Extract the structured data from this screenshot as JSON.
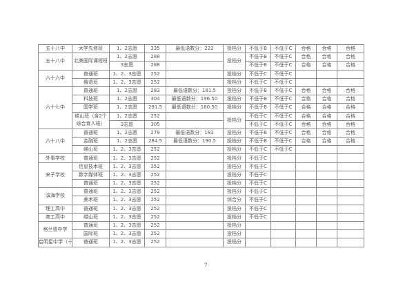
{
  "table": {
    "rows": [
      [
        {
          "t": "五十八中"
        },
        {
          "t": "大学先修班"
        },
        {
          "t": "1、2志愿"
        },
        {
          "t": "335"
        },
        {
          "t": "最低语数分：222"
        },
        {
          "t": "投档分"
        },
        {
          "t": "不低于B"
        },
        {
          "t": "不低于C"
        },
        {
          "t": "合格"
        },
        {
          "t": "合格"
        },
        {
          "t": "合格"
        }
      ],
      [
        {
          "t": "五十八中",
          "rs": 2
        },
        {
          "t": "北美国际课程班",
          "rs": 2
        },
        {
          "t": "1、2志愿"
        },
        {
          "t": "288"
        },
        {
          "t": ""
        },
        {
          "t": "投档分",
          "rs": 2
        },
        {
          "t": "不低于B"
        },
        {
          "t": "不低于C"
        },
        {
          "t": "合格"
        },
        {
          "t": "合格"
        },
        {
          "t": "合格"
        }
      ],
      [
        {
          "t": "3志愿"
        },
        {
          "t": "288"
        },
        {
          "t": ""
        },
        {
          "t": "不低于B"
        },
        {
          "t": "不低于C"
        },
        {
          "t": "合格"
        },
        {
          "t": "合格"
        },
        {
          "t": "合格"
        }
      ],
      [
        {
          "t": "六十六中",
          "rs": 2
        },
        {
          "t": "普通班"
        },
        {
          "t": "1、2、3志愿"
        },
        {
          "t": "252"
        },
        {
          "t": ""
        },
        {
          "t": "投档分"
        },
        {
          "t": "不低于C"
        },
        {
          "t": "不低于C"
        },
        {
          "t": ""
        },
        {
          "t": ""
        },
        {
          "t": ""
        }
      ],
      [
        {
          "t": "俄语班"
        },
        {
          "t": "1、2、3志愿"
        },
        {
          "t": "252"
        },
        {
          "t": ""
        },
        {
          "t": "投档分"
        },
        {
          "t": "不低于C"
        },
        {
          "t": "不低于C"
        },
        {
          "t": ""
        },
        {
          "t": ""
        },
        {
          "t": ""
        }
      ],
      [
        {
          "t": "六十七中",
          "rs": 5
        },
        {
          "t": "普通班"
        },
        {
          "t": "1、2志愿"
        },
        {
          "t": "283"
        },
        {
          "t": "最低语数分：181.5"
        },
        {
          "t": "投档分"
        },
        {
          "t": "不低于B"
        },
        {
          "t": "不低于C"
        },
        {
          "t": "合格"
        },
        {
          "t": "合格"
        },
        {
          "t": "合格"
        }
      ],
      [
        {
          "t": "科技班"
        },
        {
          "t": "1、2志愿"
        },
        {
          "t": "304"
        },
        {
          "t": "最低语数分：196.50"
        },
        {
          "t": "投档分"
        },
        {
          "t": "不低于B"
        },
        {
          "t": "不低于C"
        },
        {
          "t": "合格"
        },
        {
          "t": "合格"
        },
        {
          "t": "合格"
        }
      ],
      [
        {
          "t": "国学班"
        },
        {
          "t": "1、2志愿"
        },
        {
          "t": "291.5"
        },
        {
          "t": "最低语数分：180.50"
        },
        {
          "t": "投档分"
        },
        {
          "t": "不低于B"
        },
        {
          "t": "不低于C"
        },
        {
          "t": "合格"
        },
        {
          "t": "合格"
        },
        {
          "t": "合格"
        }
      ],
      [
        {
          "t": "崂山班（含2个综合育人班）",
          "rs": 2,
          "wrap": true
        },
        {
          "t": "1、2志愿"
        },
        {
          "t": "252"
        },
        {
          "t": ""
        },
        {
          "t": "投档分",
          "rs": 2
        },
        {
          "t": "不低于C"
        },
        {
          "t": "不低于C"
        },
        {
          "t": "合格"
        },
        {
          "t": "合格"
        },
        {
          "t": "合格"
        }
      ],
      [
        {
          "t": "3志愿"
        },
        {
          "t": "305"
        },
        {
          "t": ""
        },
        {
          "t": "不低于C"
        },
        {
          "t": "不低于C"
        },
        {
          "t": "合格"
        },
        {
          "t": "合格"
        },
        {
          "t": "合格"
        }
      ],
      [
        {
          "t": "六十八中",
          "rs": 3
        },
        {
          "t": "普通班"
        },
        {
          "t": "1、2志愿"
        },
        {
          "t": "279"
        },
        {
          "t": "最低语数分：182"
        },
        {
          "t": "投档分"
        },
        {
          "t": "不低于B"
        },
        {
          "t": "不低于C"
        },
        {
          "t": "合格"
        },
        {
          "t": "合格"
        },
        {
          "t": "合格"
        }
      ],
      [
        {
          "t": "金融班"
        },
        {
          "t": "1、2志愿"
        },
        {
          "t": "284.5"
        },
        {
          "t": "最低语数分：190.5"
        },
        {
          "t": "投档分"
        },
        {
          "t": "不低于B"
        },
        {
          "t": "不低于C"
        },
        {
          "t": "合格"
        },
        {
          "t": "合格"
        },
        {
          "t": "合格"
        }
      ],
      [
        {
          "t": "崂山班"
        },
        {
          "t": "1、2、3志愿"
        },
        {
          "t": "252"
        },
        {
          "t": ""
        },
        {
          "t": "投档分"
        },
        {
          "t": "不低于C"
        },
        {
          "t": "不低于C"
        },
        {
          "t": ""
        },
        {
          "t": ""
        },
        {
          "t": ""
        }
      ],
      [
        {
          "t": "外事学校"
        },
        {
          "t": "普通班"
        },
        {
          "t": "1、2、3志愿"
        },
        {
          "t": "252"
        },
        {
          "t": ""
        },
        {
          "t": "投档分"
        },
        {
          "t": "不低于C"
        },
        {
          "t": ""
        },
        {
          "t": ""
        },
        {
          "t": ""
        },
        {
          "t": ""
        }
      ],
      [
        {
          "t": "来子学校",
          "rs": 3
        },
        {
          "t": "信息技术班"
        },
        {
          "t": "1、2、3志愿"
        },
        {
          "t": "252"
        },
        {
          "t": ""
        },
        {
          "t": "投档分"
        },
        {
          "t": "不低于C"
        },
        {
          "t": ""
        },
        {
          "t": ""
        },
        {
          "t": ""
        },
        {
          "t": ""
        }
      ],
      [
        {
          "t": "数字媒体班"
        },
        {
          "t": "1、2、3志愿"
        },
        {
          "t": "252"
        },
        {
          "t": ""
        },
        {
          "t": "投档分"
        },
        {
          "t": "不低于C"
        },
        {
          "t": ""
        },
        {
          "t": ""
        },
        {
          "t": ""
        },
        {
          "t": ""
        }
      ],
      [
        {
          "t": "普通班"
        },
        {
          "t": "1、2、3志愿"
        },
        {
          "t": "252"
        },
        {
          "t": ""
        },
        {
          "t": "投档分"
        },
        {
          "t": "不低于C"
        },
        {
          "t": ""
        },
        {
          "t": ""
        },
        {
          "t": ""
        },
        {
          "t": ""
        }
      ],
      [
        {
          "t": "滨海学校",
          "rs": 2
        },
        {
          "t": "普通班"
        },
        {
          "t": "1、2、3志愿"
        },
        {
          "t": "252"
        },
        {
          "t": ""
        },
        {
          "t": "投档分"
        },
        {
          "t": "不低于C"
        },
        {
          "t": ""
        },
        {
          "t": ""
        },
        {
          "t": ""
        },
        {
          "t": ""
        }
      ],
      [
        {
          "t": "美术班"
        },
        {
          "t": "1、2、3志愿"
        },
        {
          "t": "252"
        },
        {
          "t": ""
        },
        {
          "t": "综合分"
        },
        {
          "t": "不低于C"
        },
        {
          "t": ""
        },
        {
          "t": ""
        },
        {
          "t": ""
        },
        {
          "t": ""
        }
      ],
      [
        {
          "t": "理工高中"
        },
        {
          "t": "普通班"
        },
        {
          "t": "1、2、3志愿"
        },
        {
          "t": "252"
        },
        {
          "t": ""
        },
        {
          "t": "投档分"
        },
        {
          "t": "不低于C"
        },
        {
          "t": ""
        },
        {
          "t": ""
        },
        {
          "t": ""
        },
        {
          "t": ""
        }
      ],
      [
        {
          "t": "商工高中"
        },
        {
          "t": "崂山班"
        },
        {
          "t": "1、2、3志愿"
        },
        {
          "t": "252"
        },
        {
          "t": ""
        },
        {
          "t": "投档分"
        },
        {
          "t": "不低于C"
        },
        {
          "t": ""
        },
        {
          "t": ""
        },
        {
          "t": ""
        },
        {
          "t": ""
        }
      ],
      [
        {
          "t": "格兰德中学",
          "rs": 2
        },
        {
          "t": "普通班"
        },
        {
          "t": "1、2、3志愿"
        },
        {
          "t": "252"
        },
        {
          "t": ""
        },
        {
          "t": "投档分"
        },
        {
          "t": ""
        },
        {
          "t": ""
        },
        {
          "t": ""
        },
        {
          "t": ""
        },
        {
          "t": ""
        }
      ],
      [
        {
          "t": "国际班"
        },
        {
          "t": "1、2、3志愿"
        },
        {
          "t": "252"
        },
        {
          "t": ""
        },
        {
          "t": "投档分"
        },
        {
          "t": ""
        },
        {
          "t": ""
        },
        {
          "t": ""
        },
        {
          "t": ""
        },
        {
          "t": ""
        }
      ],
      [
        {
          "t": "启明星中学（十"
        },
        {
          "t": "普通班"
        },
        {
          "t": "1、2、3志愿"
        },
        {
          "t": "252"
        },
        {
          "t": ""
        },
        {
          "t": "投档分"
        },
        {
          "t": ""
        },
        {
          "t": ""
        },
        {
          "t": ""
        },
        {
          "t": ""
        },
        {
          "t": ""
        }
      ]
    ]
  },
  "page_number": "7"
}
